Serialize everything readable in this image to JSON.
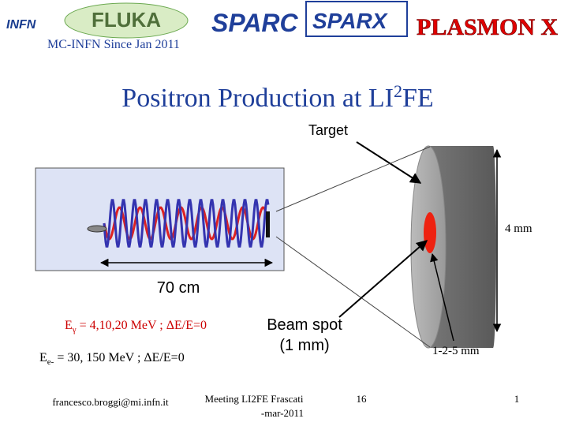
{
  "header": {
    "logos": [
      "INFN",
      "FLUKA",
      "SPARC",
      "SPARX",
      "PLASMON X"
    ],
    "subtitle": "MC-INFN Since Jan 2011"
  },
  "title": {
    "text": "Positron Production at LI",
    "sup": "2",
    "tail": "FE"
  },
  "labels": {
    "target": "Target",
    "thickness": "4 mm",
    "length": "70 cm",
    "beam_spot": [
      "Beam spot",
      "(1 mm)"
    ],
    "spot_sizes": "1-2-5 mm"
  },
  "energies": [
    {
      "symbol": "E",
      "sub": "γ",
      "text": " = 4,10,20 MeV ; ΔE/E=0"
    },
    {
      "symbol": "E",
      "sub": "e-",
      "text": " = 30, 150 MeV ; ΔE/E=0"
    }
  ],
  "footer": {
    "author": "francesco.broggi@mi.infn.it",
    "meeting": [
      "Meeting LI2FE Frascati",
      "-mar-2011"
    ],
    "page": "16",
    "slide": "1"
  }
}
